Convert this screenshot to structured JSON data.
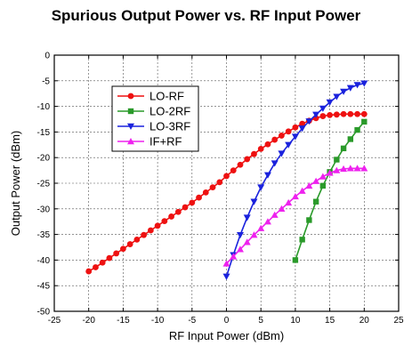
{
  "chart_data": {
    "type": "line",
    "title": "Spurious Output Power vs. RF Input Power",
    "xlabel": "RF Input Power (dBm)",
    "ylabel": "Output Power (dBm)",
    "xlim": [
      -25,
      25
    ],
    "ylim": [
      -50,
      0
    ],
    "x_ticks": [
      -25,
      -20,
      -15,
      -10,
      -5,
      0,
      5,
      10,
      15,
      20,
      25
    ],
    "y_ticks": [
      0,
      -5,
      -10,
      -15,
      -20,
      -25,
      -30,
      -35,
      -40,
      -45,
      -50
    ],
    "grid": true,
    "legend_position": "upper-left",
    "series": [
      {
        "name": "LO-RF",
        "color": "#ee1111",
        "marker": "circle",
        "x": [
          -20,
          -19,
          -18,
          -17,
          -16,
          -15,
          -14,
          -13,
          -12,
          -11,
          -10,
          -9,
          -8,
          -7,
          -6,
          -5,
          -4,
          -3,
          -2,
          -1,
          0,
          1,
          2,
          3,
          4,
          5,
          6,
          7,
          8,
          9,
          10,
          11,
          12,
          13,
          14,
          15,
          16,
          17,
          18,
          19,
          20
        ],
        "y": [
          -42.2,
          -41.4,
          -40.5,
          -39.6,
          -38.7,
          -37.8,
          -36.9,
          -36.0,
          -35.1,
          -34.2,
          -33.3,
          -32.4,
          -31.5,
          -30.6,
          -29.7,
          -28.8,
          -27.8,
          -26.8,
          -25.8,
          -24.8,
          -23.6,
          -22.5,
          -21.4,
          -20.3,
          -19.3,
          -18.3,
          -17.4,
          -16.5,
          -15.7,
          -14.9,
          -14.1,
          -13.4,
          -12.8,
          -12.3,
          -11.9,
          -11.7,
          -11.6,
          -11.5,
          -11.5,
          -11.5,
          -11.5
        ]
      },
      {
        "name": "LO-2RF",
        "color": "#2a9a2a",
        "marker": "square",
        "x": [
          10,
          11,
          12,
          13,
          14,
          15,
          16,
          17,
          18,
          19,
          20
        ],
        "y": [
          -40.0,
          -36.0,
          -32.2,
          -28.6,
          -25.5,
          -22.8,
          -20.4,
          -18.2,
          -16.4,
          -14.6,
          -13.0
        ]
      },
      {
        "name": "LO-3RF",
        "color": "#1a22dd",
        "marker": "triangle-down",
        "x": [
          0,
          1,
          2,
          3,
          4,
          5,
          6,
          7,
          8,
          9,
          10,
          11,
          12,
          13,
          14,
          15,
          16,
          17,
          18,
          19,
          20
        ],
        "y": [
          -43.2,
          -39.0,
          -35.1,
          -31.7,
          -28.6,
          -25.8,
          -23.4,
          -21.1,
          -19.2,
          -17.5,
          -15.9,
          -14.3,
          -12.9,
          -11.6,
          -10.4,
          -9.2,
          -8.1,
          -7.1,
          -6.4,
          -5.8,
          -5.5
        ]
      },
      {
        "name": "IF+RF",
        "color": "#ee22ee",
        "marker": "triangle-up",
        "x": [
          0,
          1,
          2,
          3,
          4,
          5,
          6,
          7,
          8,
          9,
          10,
          11,
          12,
          13,
          14,
          15,
          16,
          17,
          18,
          19,
          20
        ],
        "y": [
          -40.7,
          -39.3,
          -37.9,
          -36.5,
          -35.1,
          -33.8,
          -32.5,
          -31.2,
          -30.0,
          -28.8,
          -27.6,
          -26.5,
          -25.5,
          -24.6,
          -23.7,
          -23.0,
          -22.5,
          -22.2,
          -22.1,
          -22.1,
          -22.1
        ]
      }
    ]
  }
}
